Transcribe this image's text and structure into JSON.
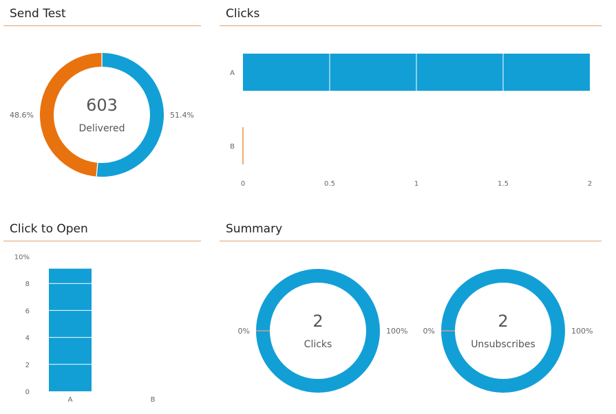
{
  "colors": {
    "blue": "#129fd6",
    "orange": "#e8720e",
    "rule": "#e0a070",
    "gray": "#a0a0a0"
  },
  "panels": {
    "send_test": {
      "title": "Send Test"
    },
    "clicks": {
      "title": "Clicks"
    },
    "click_to_open": {
      "title": "Click to Open"
    },
    "summary": {
      "title": "Summary"
    }
  },
  "chart_data": [
    {
      "id": "send_test",
      "type": "pie",
      "title": "Send Test",
      "center_value": "603",
      "center_label": "Delivered",
      "slices": [
        {
          "value": 51.4,
          "label": "51.4%",
          "color": "#129fd6"
        },
        {
          "value": 48.6,
          "label": "48.6%",
          "color": "#e8720e"
        }
      ]
    },
    {
      "id": "clicks",
      "type": "bar",
      "orientation": "horizontal",
      "title": "Clicks",
      "categories": [
        "A",
        "B"
      ],
      "values": [
        2,
        0
      ],
      "colors": [
        "#129fd6",
        "#e8720e"
      ],
      "xlim": [
        0,
        2
      ],
      "xticks": [
        "0",
        "0.5",
        "1",
        "1.5",
        "2"
      ],
      "xtick_values": [
        0,
        0.5,
        1,
        1.5,
        2
      ]
    },
    {
      "id": "click_to_open",
      "type": "bar",
      "orientation": "vertical",
      "title": "Click to Open",
      "categories": [
        "A",
        "B"
      ],
      "values": [
        9.1,
        0
      ],
      "ylim": [
        0,
        10
      ],
      "yticks": [
        "0",
        "2",
        "4",
        "6",
        "8",
        "10%"
      ],
      "ytick_values": [
        0,
        2,
        4,
        6,
        8,
        10
      ]
    },
    {
      "id": "summary_clicks",
      "type": "pie",
      "title": "Summary",
      "center_value": "2",
      "center_label": "Clicks",
      "slices": [
        {
          "value": 100,
          "label": "100%",
          "color": "#129fd6"
        },
        {
          "value": 0,
          "label": "0%",
          "color": "#a0a0a0"
        }
      ]
    },
    {
      "id": "summary_unsubscribes",
      "type": "pie",
      "title": "Summary",
      "center_value": "2",
      "center_label": "Unsubscribes",
      "slices": [
        {
          "value": 100,
          "label": "100%",
          "color": "#129fd6"
        },
        {
          "value": 0,
          "label": "0%",
          "color": "#a0a0a0"
        }
      ]
    }
  ]
}
